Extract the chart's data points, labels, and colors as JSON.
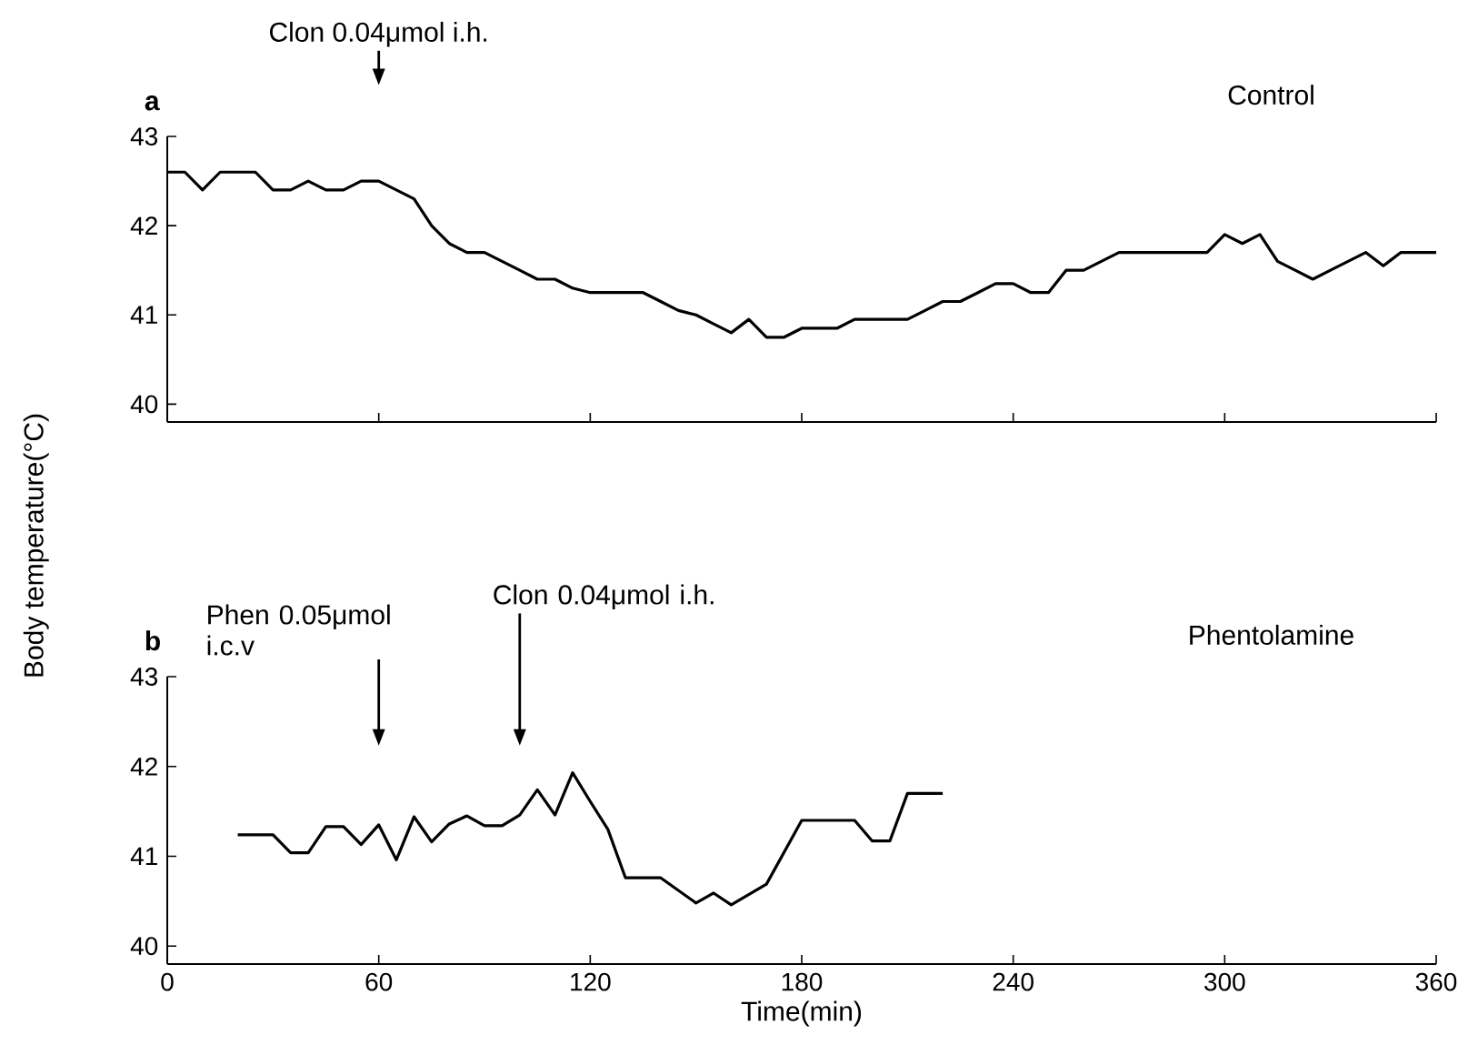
{
  "chart_data": [
    {
      "type": "line",
      "title": "a",
      "subtitle": "Control",
      "ylabel": "Body temperature(°C)",
      "x": [
        0,
        5,
        10,
        15,
        20,
        25,
        30,
        35,
        40,
        45,
        50,
        55,
        60,
        65,
        70,
        75,
        80,
        85,
        90,
        95,
        100,
        105,
        110,
        115,
        120,
        125,
        130,
        135,
        140,
        145,
        150,
        155,
        160,
        165,
        170,
        175,
        180,
        185,
        190,
        195,
        200,
        205,
        210,
        215,
        220,
        225,
        230,
        235,
        240,
        245,
        250,
        255,
        260,
        265,
        270,
        275,
        280,
        285,
        290,
        295,
        300,
        305,
        310,
        315,
        320,
        325,
        330,
        335,
        340,
        345,
        350,
        360
      ],
      "series": [
        {
          "color": "#000000",
          "values": [
            42.6,
            42.6,
            42.4,
            42.6,
            42.6,
            42.6,
            42.4,
            42.4,
            42.5,
            42.4,
            42.4,
            42.5,
            42.5,
            42.4,
            42.3,
            42.0,
            41.8,
            41.7,
            41.7,
            41.6,
            41.5,
            41.4,
            41.4,
            41.3,
            41.25,
            41.25,
            41.25,
            41.25,
            41.15,
            41.05,
            41.0,
            40.9,
            40.8,
            40.95,
            40.75,
            40.75,
            40.85,
            40.85,
            40.85,
            40.95,
            40.95,
            40.95,
            40.95,
            41.05,
            41.15,
            41.15,
            41.25,
            41.35,
            41.35,
            41.25,
            41.25,
            41.5,
            41.5,
            41.6,
            41.7,
            41.7,
            41.7,
            41.7,
            41.7,
            41.7,
            41.9,
            41.8,
            41.9,
            41.6,
            41.5,
            41.4,
            41.5,
            41.6,
            41.7,
            41.55,
            41.7,
            41.7
          ]
        }
      ],
      "xlim": [
        0,
        360
      ],
      "xticks": [
        0,
        60,
        120,
        180,
        240,
        300,
        360
      ],
      "ylim": [
        39.8,
        43
      ],
      "yticks": [
        40,
        41,
        42,
        43
      ],
      "tick_labels": "y",
      "ref_lines": [
        {
          "axis": "x",
          "value": 60,
          "label": "Clon 0.04μmol i.h."
        }
      ]
    },
    {
      "type": "line",
      "title": "b",
      "subtitle": "Phentolamine",
      "xlabel": "Time(min)",
      "x": [
        20,
        30,
        35,
        40,
        45,
        50,
        55,
        60,
        65,
        70,
        75,
        80,
        85,
        90,
        95,
        100,
        105,
        110,
        115,
        120,
        125,
        130,
        140,
        150,
        155,
        160,
        170,
        180,
        195,
        200,
        205,
        210,
        220
      ],
      "series": [
        {
          "color": "#000000",
          "values": [
            41.24,
            41.24,
            41.04,
            41.04,
            41.33,
            41.33,
            41.13,
            41.35,
            40.96,
            41.44,
            41.16,
            41.36,
            41.45,
            41.34,
            41.34,
            41.46,
            41.74,
            41.46,
            41.93,
            41.61,
            41.3,
            40.76,
            40.76,
            40.48,
            40.59,
            40.46,
            40.69,
            41.4,
            41.4,
            41.17,
            41.17,
            41.7,
            41.7
          ]
        }
      ],
      "xlim": [
        0,
        360
      ],
      "xticks": [
        0,
        60,
        120,
        180,
        240,
        300,
        360
      ],
      "ylim": [
        39.8,
        43
      ],
      "yticks": [
        40,
        41,
        42,
        43
      ],
      "ref_lines": [
        {
          "axis": "x",
          "value": 60,
          "label": "Phen 0.05μmol i.c.v"
        },
        {
          "axis": "x",
          "value": 100,
          "label": "Clon 0.04μmol i.h."
        }
      ]
    }
  ]
}
